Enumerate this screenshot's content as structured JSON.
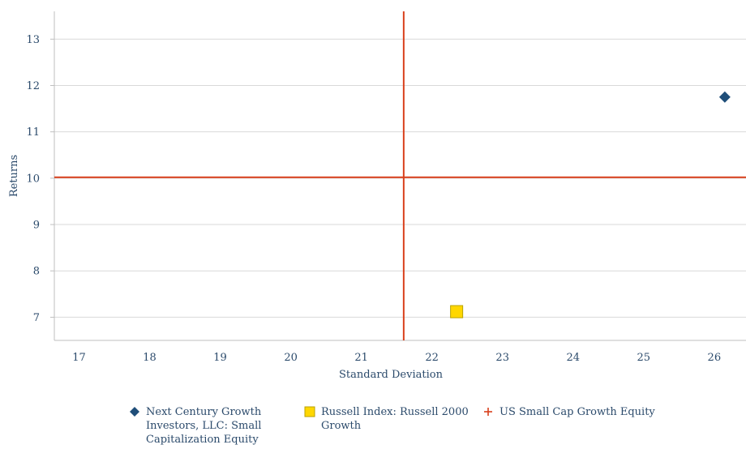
{
  "chart_data": {
    "type": "scatter",
    "title": "",
    "xlabel": "Standard Deviation",
    "ylabel": "Returns",
    "xlim": [
      16.65,
      26.45
    ],
    "ylim": [
      6.5,
      13.6
    ],
    "xticks": [
      17,
      18,
      19,
      20,
      21,
      22,
      23,
      24,
      25,
      26
    ],
    "yticks": [
      7,
      8,
      9,
      10,
      11,
      12,
      13
    ],
    "grid": "horizontal",
    "legend_position": "bottom",
    "series": [
      {
        "name": "Next Century Growth Investors, LLC: Small Capitalization Equity",
        "marker": "diamond",
        "color": "#1f4e79",
        "points": [
          {
            "x": 26.15,
            "y": 11.75
          }
        ]
      },
      {
        "name": "Russell Index: Russell 2000 Growth",
        "marker": "square",
        "color": "#ffd700",
        "points": [
          {
            "x": 22.35,
            "y": 7.12
          }
        ]
      },
      {
        "name": "US Small Cap Growth Equity",
        "marker": "crosshair",
        "color": "#d9401c",
        "points": [
          {
            "x": 21.6,
            "y": 10.02
          }
        ]
      }
    ]
  },
  "legend": {
    "items": [
      {
        "label": "Next Century Growth Investors, LLC: Small Capitalization Equity",
        "lines": [
          "Next Century Growth",
          "Investors, LLC: Small",
          "Capitalization Equity"
        ]
      },
      {
        "label": "Russell Index: Russell 2000 Growth",
        "lines": [
          "Russell Index: Russell 2000",
          "Growth"
        ]
      },
      {
        "label": "US Small Cap Growth Equity",
        "lines": [
          "US Small Cap Growth Equity"
        ]
      }
    ]
  }
}
